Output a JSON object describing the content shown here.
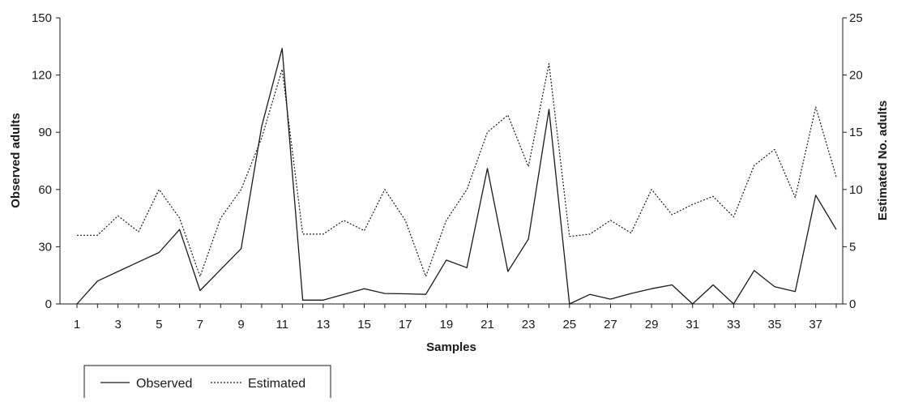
{
  "chart_data": {
    "type": "line",
    "title": "",
    "xlabel": "Samples",
    "ylabel": "Observed adults",
    "y2label": "Estimated No. adults",
    "x": [
      1,
      2,
      3,
      4,
      5,
      6,
      7,
      8,
      9,
      10,
      11,
      12,
      13,
      14,
      15,
      16,
      17,
      18,
      19,
      20,
      21,
      22,
      23,
      24,
      25,
      26,
      27,
      28,
      29,
      30,
      31,
      32,
      33,
      34,
      35,
      36,
      37,
      38
    ],
    "x_tick_labels": [
      "1",
      "3",
      "5",
      "7",
      "9",
      "11",
      "13",
      "15",
      "17",
      "19",
      "21",
      "23",
      "25",
      "27",
      "29",
      "31",
      "33",
      "35",
      "37"
    ],
    "ylim": [
      0,
      150
    ],
    "y_ticks": [
      0,
      30,
      60,
      90,
      120,
      150
    ],
    "y2lim": [
      0,
      25
    ],
    "y2_ticks": [
      0,
      5,
      10,
      15,
      20,
      25
    ],
    "grid": false,
    "legend_position": "bottom-left",
    "series": [
      {
        "name": "Observed",
        "axis": "left",
        "style": "solid",
        "values": [
          0,
          12,
          17,
          22,
          27,
          39,
          7,
          18,
          29,
          93,
          134,
          2,
          2,
          5,
          8,
          5.5,
          5.3,
          5,
          23,
          19,
          71,
          17,
          34,
          102,
          0,
          5,
          2.5,
          5.5,
          8,
          10,
          0,
          10,
          0,
          17.5,
          9,
          6.5,
          57,
          39
        ]
      },
      {
        "name": "Estimated",
        "axis": "right",
        "style": "dotted",
        "values": [
          6,
          6,
          7.7,
          6.3,
          10,
          7.5,
          2.4,
          7.5,
          10,
          14.5,
          20.5,
          6.1,
          6.1,
          7.3,
          6.4,
          10,
          7.3,
          2.4,
          7.3,
          10,
          15,
          16.5,
          12,
          21,
          5.9,
          6.1,
          7.3,
          6.2,
          10,
          7.8,
          8.7,
          9.4,
          7.6,
          12.1,
          13.5,
          9.3,
          17.2,
          11.1
        ]
      }
    ]
  }
}
